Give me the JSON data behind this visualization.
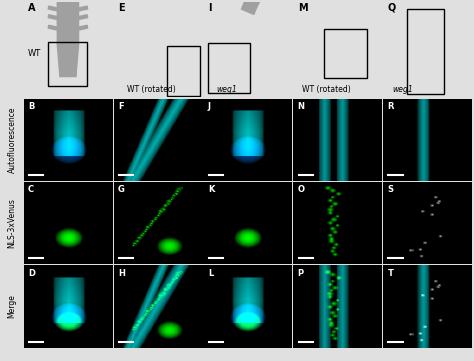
{
  "col_labels": [
    "A",
    "E",
    "I",
    "M",
    "Q"
  ],
  "col_sublabels": [
    "WT",
    "WT (rotated)",
    "weg1",
    "WT (rotated)",
    "weg1"
  ],
  "row_side_labels": [
    "Autofluorescence",
    "NLS-3xVenus",
    "Merge"
  ],
  "panel_labels_row1": [
    "B",
    "F",
    "J",
    "N",
    "R"
  ],
  "panel_labels_row2": [
    "C",
    "G",
    "K",
    "O",
    "S"
  ],
  "panel_labels_row3": [
    "D",
    "H",
    "L",
    "P",
    "T"
  ],
  "gray_color": "#a0a0a0",
  "figure_bg": "#e0e0e0",
  "n_cols": 5
}
